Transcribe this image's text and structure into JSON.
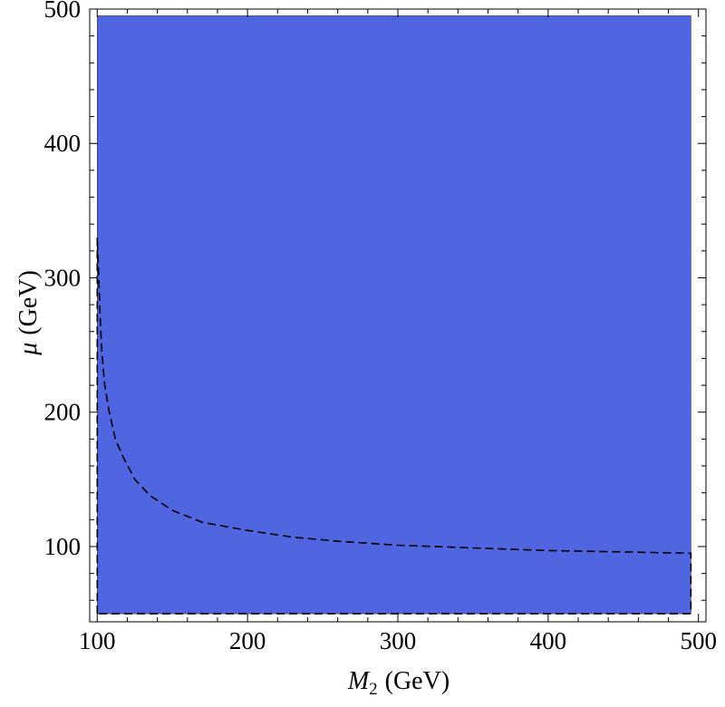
{
  "chart_data": {
    "type": "area",
    "title": "",
    "xlabel_symbol": "M",
    "xlabel_sub": "2",
    "xlabel_unit": "(GeV)",
    "ylabel_symbol": "μ",
    "ylabel_unit": "(GeV)",
    "xlim": [
      95,
      505
    ],
    "ylim": [
      44,
      500
    ],
    "xticks": [
      100,
      200,
      300,
      400,
      500
    ],
    "yticks": [
      100,
      200,
      300,
      400,
      500
    ],
    "fill_color": "#5065E0",
    "region": {
      "x": [
        100,
        495
      ],
      "y": [
        50,
        495
      ]
    },
    "dashed_contour": {
      "x": [
        100,
        100,
        101,
        102,
        103,
        105,
        108,
        112,
        118,
        125,
        135,
        150,
        170,
        200,
        230,
        260,
        300,
        350,
        400,
        450,
        495,
        495,
        100
      ],
      "y": [
        50,
        330,
        300,
        270,
        245,
        220,
        200,
        180,
        165,
        150,
        138,
        127,
        118,
        112,
        107,
        104,
        101,
        99,
        97,
        96,
        95,
        50,
        50
      ]
    },
    "grid": false,
    "legend": "none"
  }
}
